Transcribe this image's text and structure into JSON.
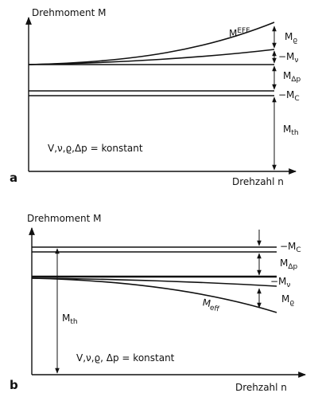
{
  "panels": [
    {
      "letter": "a",
      "y_axis_label": "Drehmoment M",
      "x_axis_label": "Drehzahl n",
      "condition": "V,ν,ϱ,Δp = konstant",
      "curve_label": {
        "main": "M",
        "sub": "EFF"
      },
      "quantities": [
        {
          "main": "M",
          "sub": "ϱ"
        },
        {
          "main": "−M",
          "sub": "ν"
        },
        {
          "main": "M",
          "sub": "Δp"
        },
        {
          "main": "−M",
          "sub": "C"
        },
        {
          "main": "M",
          "sub": "th"
        }
      ]
    },
    {
      "letter": "b",
      "y_axis_label": "Drehmoment M",
      "x_axis_label": "Drehzahl n",
      "condition": "V,ν,ϱ, Δp = konstant",
      "curve_label": {
        "main": "M",
        "sub": "eff"
      },
      "quantities": [
        {
          "main": "−M",
          "sub": "C"
        },
        {
          "main": "M",
          "sub": "Δp"
        },
        {
          "main": "−M",
          "sub": "ν"
        },
        {
          "main": "M",
          "sub": "ϱ"
        },
        {
          "main": "M",
          "sub": "th"
        }
      ]
    }
  ]
}
